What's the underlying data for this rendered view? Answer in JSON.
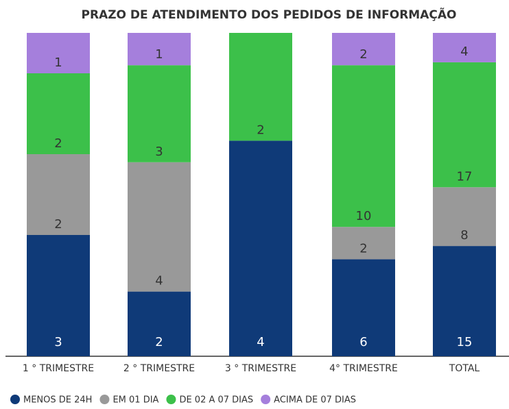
{
  "chart_data": {
    "type": "stacked_percent_bar",
    "title": "PRAZO DE ATENDIMENTO DOS PEDIDOS DE INFORMAÇÃO",
    "categories": [
      "1 ° TRIMESTRE",
      "2 ° TRIMESTRE",
      "3 ° TRIMESTRE",
      "4° TRIMESTRE",
      "TOTAL"
    ],
    "series": [
      {
        "name": "MENOS DE 24H",
        "color": "#0f3a78",
        "values": [
          3,
          2,
          4,
          6,
          15
        ]
      },
      {
        "name": "EM 01 DIA",
        "color": "#999999",
        "values": [
          2,
          4,
          0,
          2,
          8
        ]
      },
      {
        "name": "DE 02 A 07 DIAS",
        "color": "#3cc04a",
        "values": [
          2,
          3,
          2,
          10,
          17
        ]
      },
      {
        "name": "ACIMA DE 07 DIAS",
        "color": "#a57fdc",
        "values": [
          1,
          1,
          0,
          2,
          4
        ]
      }
    ],
    "legend": "bottom"
  }
}
